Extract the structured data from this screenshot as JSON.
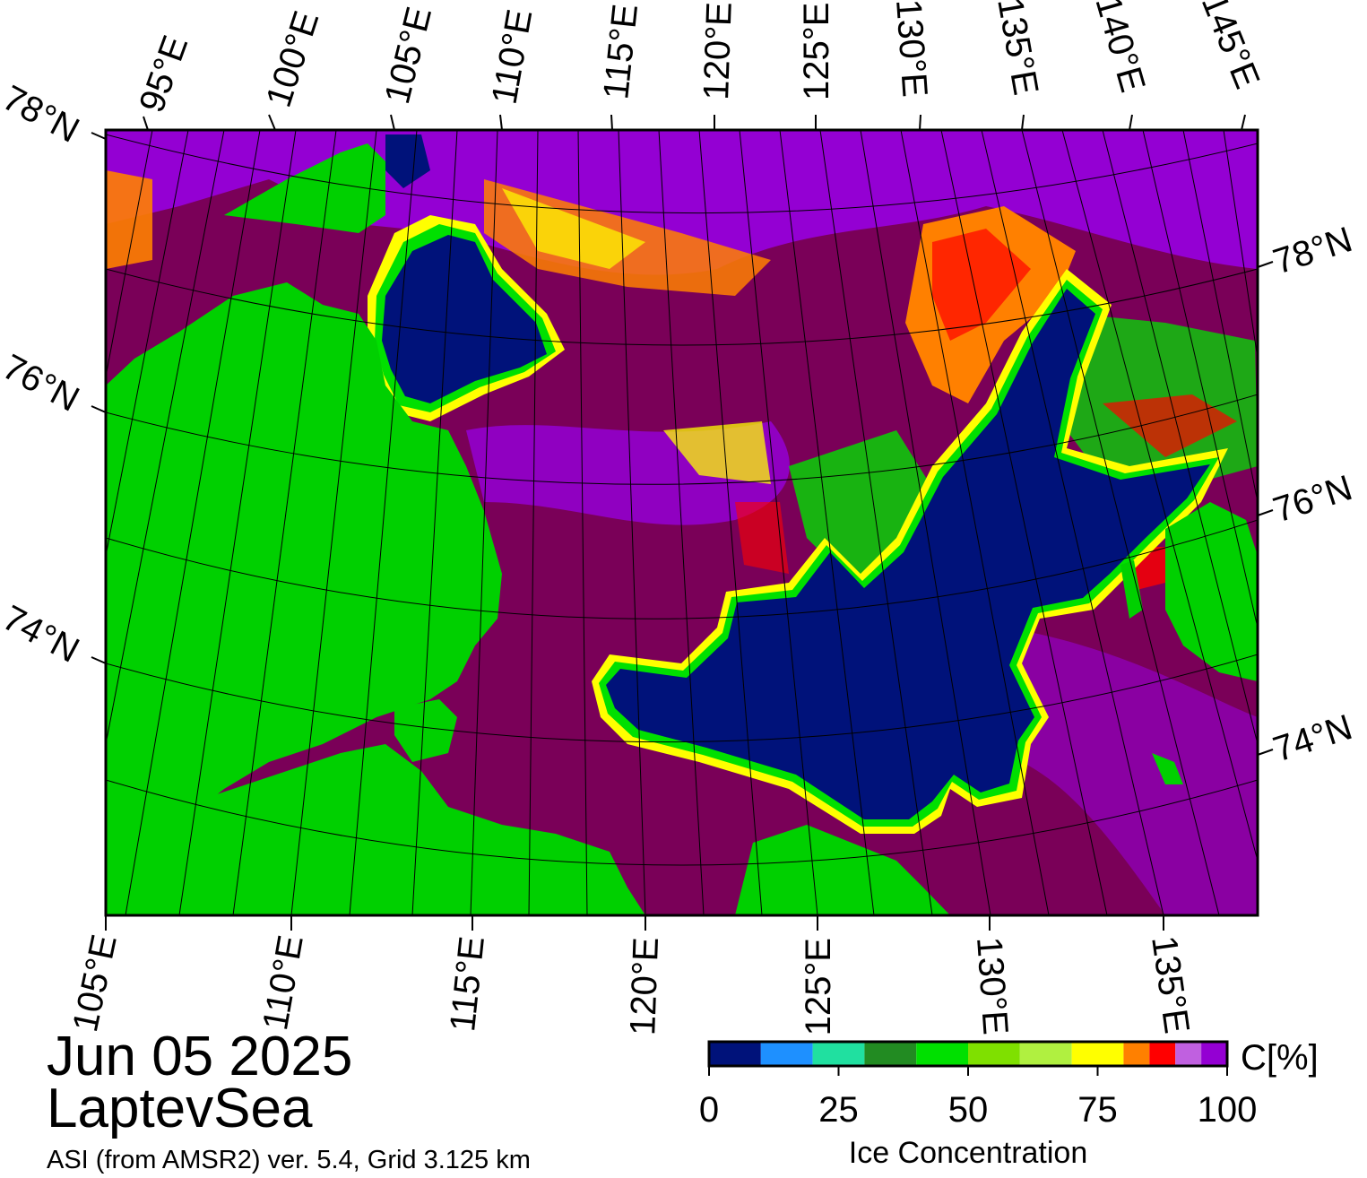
{
  "map": {
    "date": "Jun 05 2025",
    "region": "LaptevSea",
    "source": "ASI (from AMSR2) ver. 5.4,  Grid 3.125 km",
    "top_lon_labels": [
      "95°E",
      "100°E",
      "105°E",
      "110°E",
      "115°E",
      "120°E",
      "125°E",
      "130°E",
      "135°E",
      "140°E",
      "145°E"
    ],
    "bottom_lon_labels": [
      "105°E",
      "110°E",
      "115°E",
      "120°E",
      "125°E",
      "130°E",
      "135°E"
    ],
    "left_lat_labels": [
      "78°N",
      "76°N",
      "74°N"
    ],
    "right_lat_labels": [
      "78°N",
      "76°N",
      "74°N"
    ],
    "colors": {
      "land": "#00d000",
      "open_water": "#00127a",
      "ice_high": "#7a0058",
      "ice_purple": "#9400d3",
      "ice_mid": "#ffff00",
      "coast_gray": "#8c8c8c"
    }
  },
  "colorbar": {
    "title": "Ice Concentration",
    "unit": "C[%]",
    "ticks": [
      "0",
      "25",
      "50",
      "75",
      "100"
    ],
    "range": [
      0,
      100
    ],
    "bins": [
      {
        "from": 0,
        "to": 10,
        "color": "#00127a"
      },
      {
        "from": 10,
        "to": 20,
        "color": "#1e90ff"
      },
      {
        "from": 20,
        "to": 30,
        "color": "#20e0a0"
      },
      {
        "from": 30,
        "to": 40,
        "color": "#228b22"
      },
      {
        "from": 40,
        "to": 50,
        "color": "#00e000"
      },
      {
        "from": 50,
        "to": 60,
        "color": "#7fe000"
      },
      {
        "from": 60,
        "to": 70,
        "color": "#b0f040"
      },
      {
        "from": 70,
        "to": 80,
        "color": "#ffff00"
      },
      {
        "from": 80,
        "to": 85,
        "color": "#ff8000"
      },
      {
        "from": 85,
        "to": 90,
        "color": "#ff0000"
      },
      {
        "from": 90,
        "to": 95,
        "color": "#c060e0"
      },
      {
        "from": 95,
        "to": 100,
        "color": "#9400d3"
      }
    ]
  }
}
